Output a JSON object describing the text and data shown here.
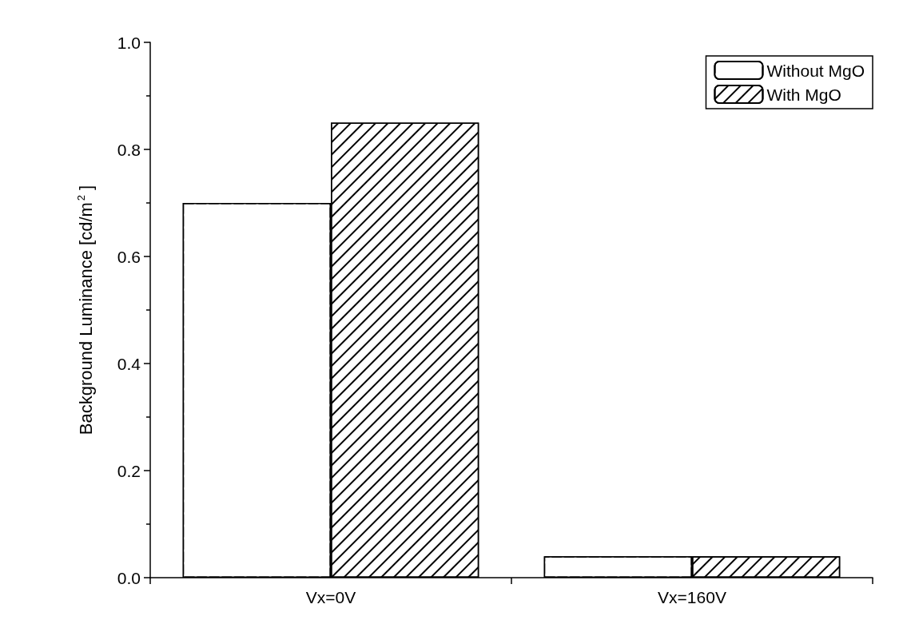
{
  "chart_data": {
    "type": "bar",
    "ylabel": "Background Luminance [cd/m$^{2}$]",
    "categories": [
      "Vx=0V",
      "Vx=160V"
    ],
    "series": [
      {
        "name": "Without MgO",
        "color": "#ffffff",
        "values": [
          0.7,
          0.04
        ]
      },
      {
        "name": "With MgO",
        "color": "#000000",
        "values": [
          0.85,
          0.04
        ]
      }
    ],
    "ylim": [
      0,
      1.0
    ],
    "yticks": [
      {
        "value": 0,
        "label": "0.0"
      },
      {
        "value": 0.2,
        "label": "0.2"
      },
      {
        "value": 0.4,
        "label": "0.4"
      },
      {
        "value": 0.6,
        "label": "0.6"
      },
      {
        "value": 0.8,
        "label": "0.8"
      },
      {
        "value": 1.0,
        "label": "1.0"
      }
    ],
    "grid": false,
    "legend": "top right"
  }
}
